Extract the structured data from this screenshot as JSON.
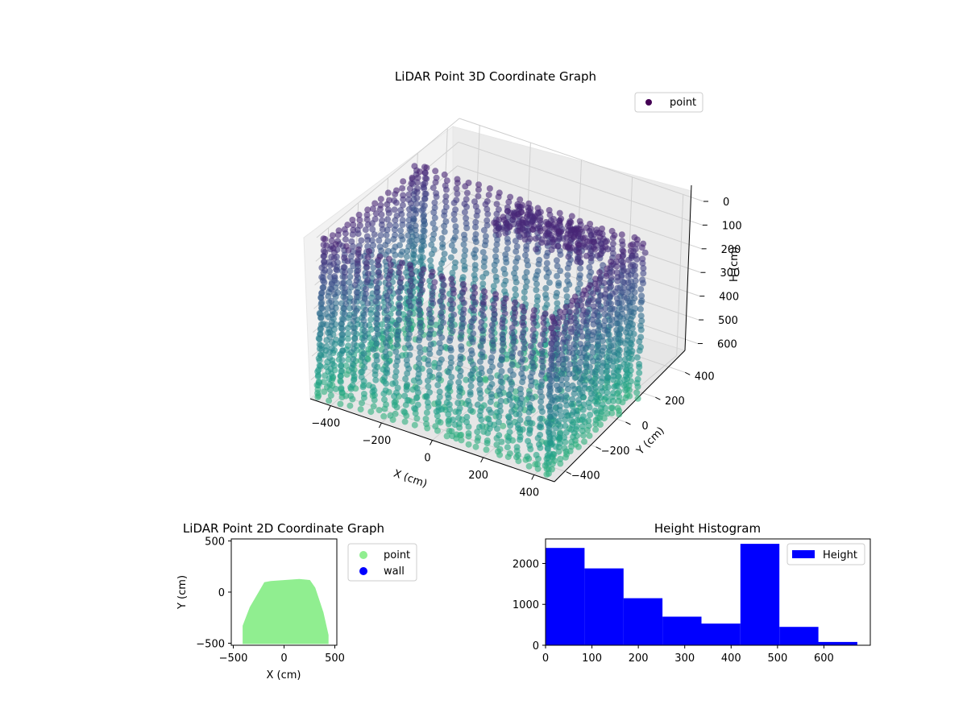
{
  "chart_data": [
    {
      "type": "scatter",
      "projection": "3d",
      "title": "LiDAR Point 3D Coordinate Graph",
      "xlabel": "X (cm)",
      "ylabel": "Y (cm)",
      "zlabel": "H (cm)",
      "xticks": [
        -400,
        -200,
        0,
        200,
        400
      ],
      "yticks": [
        -400,
        -200,
        0,
        200,
        400
      ],
      "zticks": [
        0,
        100,
        200,
        300,
        400,
        500,
        600
      ],
      "xlim": [
        -480,
        480
      ],
      "ylim": [
        -480,
        480
      ],
      "zlim": [
        0,
        680
      ],
      "z_axis_inverted": true,
      "colormap": "viridis",
      "grid": true,
      "legend": {
        "position": "top-right",
        "entries": [
          {
            "label": "point",
            "color": "#440154"
          }
        ]
      },
      "room_shape": {
        "x_range": [
          -450,
          450
        ],
        "y_range": [
          -480,
          130
        ],
        "height_range": [
          0,
          680
        ]
      }
    },
    {
      "type": "scatter",
      "title": "LiDAR Point 2D Coordinate Graph",
      "xlabel": "X (cm)",
      "ylabel": "Y (cm)",
      "xticks": [
        -500,
        0,
        500
      ],
      "yticks": [
        -500,
        0,
        500
      ],
      "xlim": [
        -520,
        520
      ],
      "ylim": [
        -520,
        520
      ],
      "grid": false,
      "legend": {
        "position": "outside-right",
        "entries": [
          {
            "label": "point",
            "color": "#90ee90"
          },
          {
            "label": "wall",
            "color": "#0000ff"
          }
        ]
      },
      "point_region_outline": [
        [
          -400,
          -500
        ],
        [
          -400,
          -330
        ],
        [
          -330,
          -150
        ],
        [
          -230,
          20
        ],
        [
          -190,
          90
        ],
        [
          -130,
          100
        ],
        [
          150,
          120
        ],
        [
          250,
          110
        ],
        [
          300,
          40
        ],
        [
          380,
          -200
        ],
        [
          430,
          -420
        ],
        [
          430,
          -500
        ]
      ]
    },
    {
      "type": "bar",
      "subtype": "histogram",
      "title": "Height Histogram",
      "bin_edges": [
        0,
        84,
        168,
        252,
        336,
        420,
        504,
        588,
        672
      ],
      "values": [
        2380,
        1880,
        1150,
        700,
        530,
        2480,
        450,
        80
      ],
      "series": [
        {
          "name": "Height",
          "color": "#0000ff"
        }
      ],
      "xticks": [
        0,
        100,
        200,
        300,
        400,
        500,
        600
      ],
      "yticks": [
        0,
        1000,
        2000
      ],
      "xlim": [
        0,
        700
      ],
      "ylim": [
        0,
        2600
      ],
      "legend": {
        "position": "top-right"
      }
    }
  ]
}
